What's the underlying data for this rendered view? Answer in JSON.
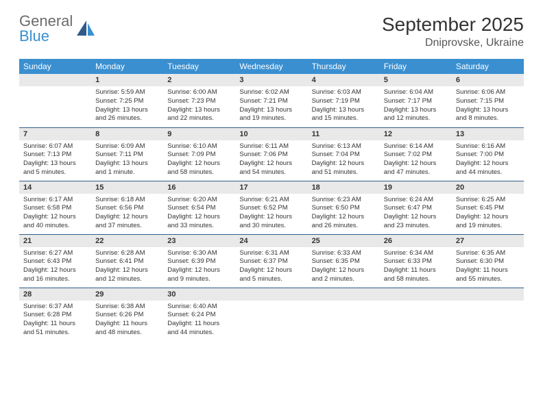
{
  "brand": {
    "name_gray": "General",
    "name_blue": "Blue"
  },
  "title": "September 2025",
  "location": "Dniprovske, Ukraine",
  "colors": {
    "header_bg": "#3a8fd0",
    "header_text": "#ffffff",
    "daynum_bg": "#e9e9e9",
    "rule": "#2f5b8a",
    "text": "#333333",
    "logo_gray": "#6b6b6b",
    "logo_blue": "#3a8fd0",
    "page_bg": "#ffffff"
  },
  "font": {
    "family": "Arial",
    "title_size_pt": 21,
    "location_size_pt": 12,
    "th_size_pt": 9,
    "cell_size_pt": 7.5
  },
  "weekdays": [
    "Sunday",
    "Monday",
    "Tuesday",
    "Wednesday",
    "Thursday",
    "Friday",
    "Saturday"
  ],
  "calendar": {
    "first_weekday_index": 1,
    "days": [
      {
        "n": 1,
        "sunrise": "5:59 AM",
        "sunset": "7:25 PM",
        "daylight": "13 hours and 26 minutes."
      },
      {
        "n": 2,
        "sunrise": "6:00 AM",
        "sunset": "7:23 PM",
        "daylight": "13 hours and 22 minutes."
      },
      {
        "n": 3,
        "sunrise": "6:02 AM",
        "sunset": "7:21 PM",
        "daylight": "13 hours and 19 minutes."
      },
      {
        "n": 4,
        "sunrise": "6:03 AM",
        "sunset": "7:19 PM",
        "daylight": "13 hours and 15 minutes."
      },
      {
        "n": 5,
        "sunrise": "6:04 AM",
        "sunset": "7:17 PM",
        "daylight": "13 hours and 12 minutes."
      },
      {
        "n": 6,
        "sunrise": "6:06 AM",
        "sunset": "7:15 PM",
        "daylight": "13 hours and 8 minutes."
      },
      {
        "n": 7,
        "sunrise": "6:07 AM",
        "sunset": "7:13 PM",
        "daylight": "13 hours and 5 minutes."
      },
      {
        "n": 8,
        "sunrise": "6:09 AM",
        "sunset": "7:11 PM",
        "daylight": "13 hours and 1 minute."
      },
      {
        "n": 9,
        "sunrise": "6:10 AM",
        "sunset": "7:09 PM",
        "daylight": "12 hours and 58 minutes."
      },
      {
        "n": 10,
        "sunrise": "6:11 AM",
        "sunset": "7:06 PM",
        "daylight": "12 hours and 54 minutes."
      },
      {
        "n": 11,
        "sunrise": "6:13 AM",
        "sunset": "7:04 PM",
        "daylight": "12 hours and 51 minutes."
      },
      {
        "n": 12,
        "sunrise": "6:14 AM",
        "sunset": "7:02 PM",
        "daylight": "12 hours and 47 minutes."
      },
      {
        "n": 13,
        "sunrise": "6:16 AM",
        "sunset": "7:00 PM",
        "daylight": "12 hours and 44 minutes."
      },
      {
        "n": 14,
        "sunrise": "6:17 AM",
        "sunset": "6:58 PM",
        "daylight": "12 hours and 40 minutes."
      },
      {
        "n": 15,
        "sunrise": "6:18 AM",
        "sunset": "6:56 PM",
        "daylight": "12 hours and 37 minutes."
      },
      {
        "n": 16,
        "sunrise": "6:20 AM",
        "sunset": "6:54 PM",
        "daylight": "12 hours and 33 minutes."
      },
      {
        "n": 17,
        "sunrise": "6:21 AM",
        "sunset": "6:52 PM",
        "daylight": "12 hours and 30 minutes."
      },
      {
        "n": 18,
        "sunrise": "6:23 AM",
        "sunset": "6:50 PM",
        "daylight": "12 hours and 26 minutes."
      },
      {
        "n": 19,
        "sunrise": "6:24 AM",
        "sunset": "6:47 PM",
        "daylight": "12 hours and 23 minutes."
      },
      {
        "n": 20,
        "sunrise": "6:25 AM",
        "sunset": "6:45 PM",
        "daylight": "12 hours and 19 minutes."
      },
      {
        "n": 21,
        "sunrise": "6:27 AM",
        "sunset": "6:43 PM",
        "daylight": "12 hours and 16 minutes."
      },
      {
        "n": 22,
        "sunrise": "6:28 AM",
        "sunset": "6:41 PM",
        "daylight": "12 hours and 12 minutes."
      },
      {
        "n": 23,
        "sunrise": "6:30 AM",
        "sunset": "6:39 PM",
        "daylight": "12 hours and 9 minutes."
      },
      {
        "n": 24,
        "sunrise": "6:31 AM",
        "sunset": "6:37 PM",
        "daylight": "12 hours and 5 minutes."
      },
      {
        "n": 25,
        "sunrise": "6:33 AM",
        "sunset": "6:35 PM",
        "daylight": "12 hours and 2 minutes."
      },
      {
        "n": 26,
        "sunrise": "6:34 AM",
        "sunset": "6:33 PM",
        "daylight": "11 hours and 58 minutes."
      },
      {
        "n": 27,
        "sunrise": "6:35 AM",
        "sunset": "6:30 PM",
        "daylight": "11 hours and 55 minutes."
      },
      {
        "n": 28,
        "sunrise": "6:37 AM",
        "sunset": "6:28 PM",
        "daylight": "11 hours and 51 minutes."
      },
      {
        "n": 29,
        "sunrise": "6:38 AM",
        "sunset": "6:26 PM",
        "daylight": "11 hours and 48 minutes."
      },
      {
        "n": 30,
        "sunrise": "6:40 AM",
        "sunset": "6:24 PM",
        "daylight": "11 hours and 44 minutes."
      }
    ]
  },
  "labels": {
    "sunrise": "Sunrise:",
    "sunset": "Sunset:",
    "daylight": "Daylight:"
  }
}
